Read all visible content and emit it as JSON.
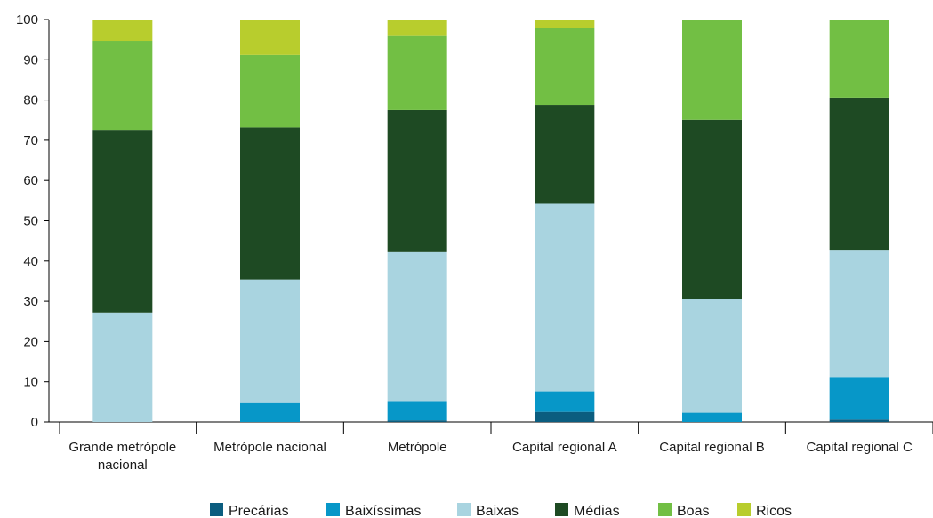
{
  "chart_data": {
    "type": "bar",
    "stacked": true,
    "categories": [
      [
        "Grande metrópole",
        "nacional"
      ],
      [
        "Metrópole nacional"
      ],
      [
        "Metrópole"
      ],
      [
        "Capital regional A"
      ],
      [
        "Capital regional B"
      ],
      [
        "Capital regional C"
      ]
    ],
    "series": [
      {
        "name": "Precárias",
        "color": "#0b5d7f",
        "values": [
          0,
          0,
          0.4,
          2.5,
          0,
          0.6
        ]
      },
      {
        "name": "Baixíssimas",
        "color": "#0797c8",
        "values": [
          0,
          4.7,
          4.8,
          5.1,
          2.3,
          10.6
        ]
      },
      {
        "name": "Baixas",
        "color": "#a9d4e0",
        "values": [
          27.2,
          30.7,
          37.0,
          46.6,
          28.2,
          31.6
        ]
      },
      {
        "name": "Médias",
        "color": "#1e4a23",
        "values": [
          45.4,
          37.8,
          35.3,
          24.6,
          44.6,
          37.8
        ]
      },
      {
        "name": "Boas",
        "color": "#72bf44",
        "values": [
          22.1,
          18.0,
          18.6,
          19.0,
          24.8,
          19.4
        ]
      },
      {
        "name": "Ricos",
        "color": "#b8cd2d",
        "values": [
          5.3,
          8.8,
          3.9,
          2.2,
          0,
          0
        ]
      }
    ],
    "yticks": [
      0,
      10,
      20,
      30,
      40,
      50,
      60,
      70,
      80,
      90,
      100
    ],
    "ylim": [
      0,
      100
    ],
    "grid": false,
    "legend_position": "bottom"
  }
}
